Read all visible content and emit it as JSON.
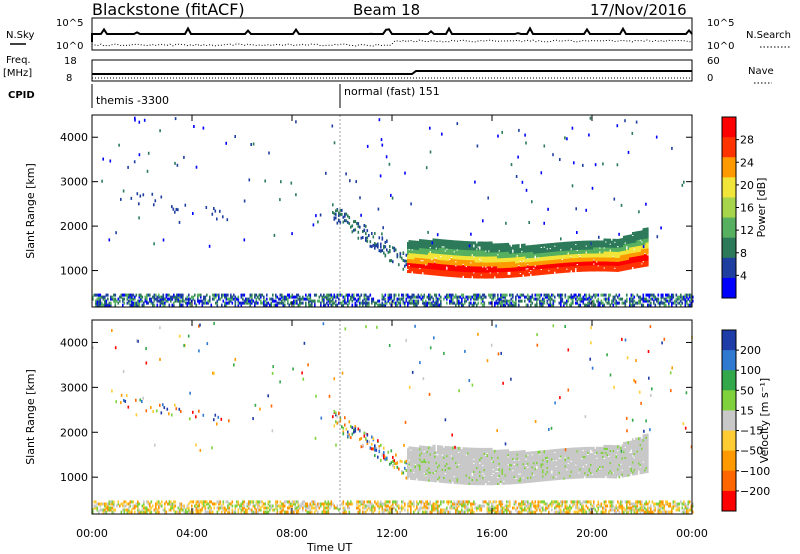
{
  "header": {
    "station": "Blackstone (fitACF)",
    "beam": "Beam 18",
    "date": "17/Nov/2016"
  },
  "panels_top": {
    "nsky_label": "N.Sky",
    "nsearch_label": "N.Search",
    "freq_label": "Freq.",
    "freq_unit": "[MHz]",
    "nave_label": "Nave",
    "cpid_label": "CPID",
    "nsky_ticks": [
      "10^5",
      "10^0"
    ],
    "nsearch_ticks": [
      "10^5",
      "10^0"
    ],
    "freq_ticks": [
      "18",
      "8"
    ],
    "nave_ticks": [
      "60",
      "0"
    ],
    "cpid_1": "themis -3300",
    "cpid_2": "normal (fast) 151"
  },
  "chart_data": [
    {
      "type": "heatmap",
      "title": "",
      "xlabel": "Time UT",
      "ylabel": "Slant Range [km]",
      "xlim": [
        0,
        24
      ],
      "ylim": [
        180,
        4500
      ],
      "xticks": [
        "00:00",
        "04:00",
        "08:00",
        "12:00",
        "16:00",
        "20:00",
        "00:00"
      ],
      "yticks": [
        "1000",
        "2000",
        "3000",
        "4000"
      ],
      "colorbar_label": "Power [dB]",
      "colorbar_ticks": [
        "4",
        "8",
        "12",
        "16",
        "20",
        "24",
        "28"
      ],
      "colorbar_range": [
        0,
        32
      ],
      "colors": [
        "#0000ff",
        "#1f3fa0",
        "#2c7a5a",
        "#56b060",
        "#a6d44a",
        "#f2e53a",
        "#ff9900",
        "#ff3300",
        "#ff0000"
      ],
      "features": [
        {
          "name": "ground-scatter-band",
          "t": [
            12.6,
            22.2
          ],
          "range_low": 900,
          "range_high": 1600,
          "peak_db": 28
        },
        {
          "name": "sloping-echo",
          "t": [
            9.6,
            12.6
          ],
          "range_start": 2300,
          "range_end": 1100,
          "peak_db": 10
        },
        {
          "name": "near-range-clutter",
          "t": [
            0,
            24
          ],
          "range_low": 180,
          "range_high": 450,
          "peak_db": 8
        }
      ]
    },
    {
      "type": "heatmap",
      "title": "",
      "xlabel": "Time UT",
      "ylabel": "Slant Range [km]",
      "xlim": [
        0,
        24
      ],
      "ylim": [
        180,
        4500
      ],
      "xticks": [
        "00:00",
        "04:00",
        "08:00",
        "12:00",
        "16:00",
        "20:00",
        "00:00"
      ],
      "yticks": [
        "1000",
        "2000",
        "3000",
        "4000"
      ],
      "colorbar_label": "Velocity [m s⁻¹]",
      "colorbar_ticks": [
        "200",
        "100",
        "50",
        "15",
        "−15",
        "−50",
        "−100",
        "−200"
      ],
      "colors": [
        "#1e3ca8",
        "#2f7ad0",
        "#33a84a",
        "#7fd23c",
        "#c8c8c8",
        "#ffcc33",
        "#ff9900",
        "#ff6600",
        "#ff0000"
      ],
      "features": [
        {
          "name": "ground-scatter-band",
          "t": [
            12.6,
            22.2
          ],
          "range_low": 900,
          "range_high": 1600,
          "velocity": 0
        },
        {
          "name": "near-range-echoes",
          "t": [
            0,
            24
          ],
          "range_low": 180,
          "range_high": 450,
          "velocity": -50
        }
      ]
    }
  ]
}
